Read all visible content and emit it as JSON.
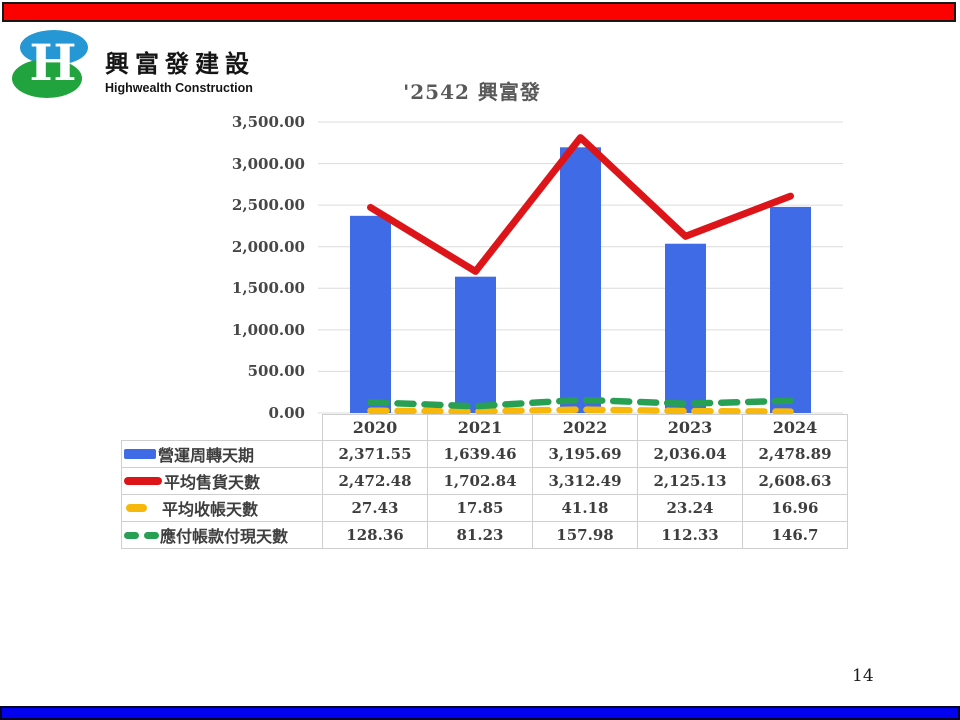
{
  "slide": {
    "page_number": "14"
  },
  "banners": {
    "top_color": "#fb0100",
    "bottom_color": "#0202ee"
  },
  "logo": {
    "monogram": "H",
    "company_name_zh": "興富發建設",
    "company_name_en": "Highwealth Construction",
    "blue": "#2497d4",
    "green": "#21a33e"
  },
  "chart_data": {
    "type": "combo-bar-line",
    "title": "'2542 興富發",
    "xlabel": "",
    "ylabel": "",
    "categories": [
      "2020",
      "2021",
      "2022",
      "2023",
      "2024"
    ],
    "series": [
      {
        "name": "營運周轉天期",
        "type": "bar",
        "icon": "bar-swatch",
        "color": "#3f6be6",
        "values": [
          2371.55,
          1639.46,
          3195.69,
          2036.04,
          2478.89
        ],
        "display": [
          "2,371.55",
          "1,639.46",
          "3,195.69",
          "2,036.04",
          "2,478.89"
        ]
      },
      {
        "name": "平均售貨天數",
        "type": "line",
        "style": "solid",
        "icon": "solid-line",
        "color": "#dd1519",
        "values": [
          2472.48,
          1702.84,
          3312.49,
          2125.13,
          2608.63
        ],
        "display": [
          "2,472.48",
          "1,702.84",
          "3,312.49",
          "2,125.13",
          "2,608.63"
        ]
      },
      {
        "name": "平均收帳天數",
        "type": "line",
        "style": "dashed",
        "icon": "short-dash",
        "color": "#f7b80c",
        "values": [
          27.43,
          17.85,
          41.18,
          23.24,
          16.96
        ],
        "display": [
          "27.43",
          "17.85",
          "41.18",
          "23.24",
          "16.96"
        ]
      },
      {
        "name": "應付帳款付現天數",
        "type": "line",
        "style": "dashed",
        "icon": "double-dash",
        "color": "#27a053",
        "values": [
          128.36,
          81.23,
          157.98,
          112.33,
          146.7
        ],
        "display": [
          "128.36",
          "81.23",
          "157.98",
          "112.33",
          "146.7"
        ]
      }
    ],
    "ylim": [
      0,
      3500
    ],
    "ytick_step": 500,
    "yticks": [
      "3,500.00",
      "3,000.00",
      "2,500.00",
      "2,000.00",
      "1,500.00",
      "1,000.00",
      "500.00",
      "0.00"
    ],
    "grid": true,
    "legend_position": "table-rows-left"
  }
}
